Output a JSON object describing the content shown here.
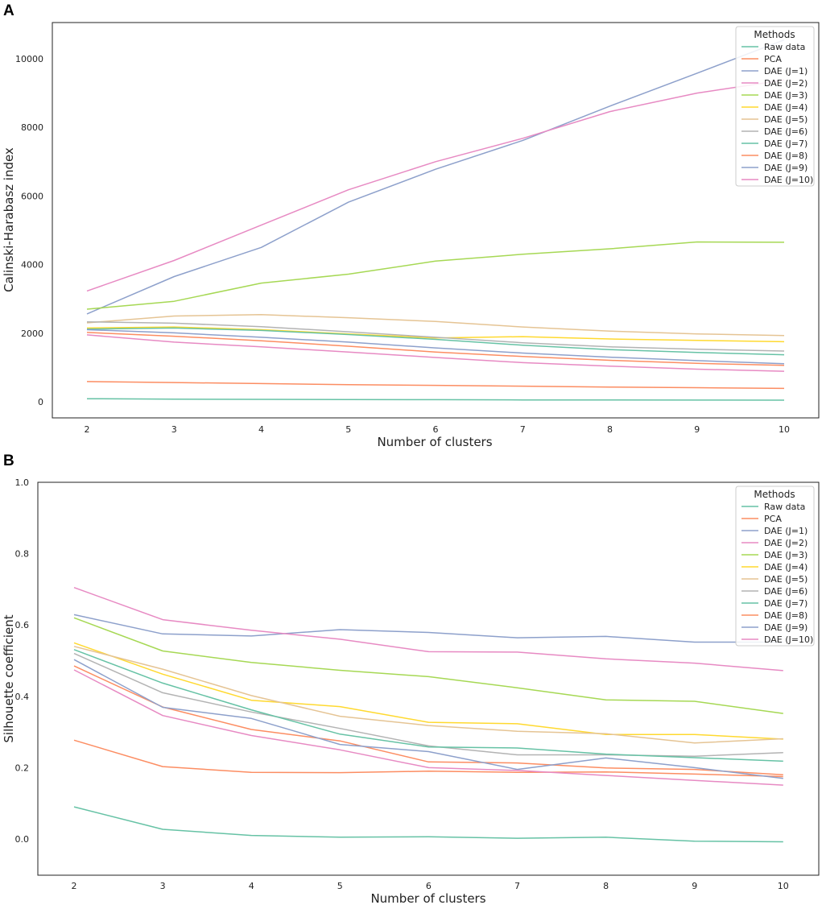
{
  "colors": [
    "#66c2a5",
    "#fc8d62",
    "#8da0cb",
    "#e78ac3",
    "#a6d854",
    "#ffd92f",
    "#e5c494",
    "#b3b3b3",
    "#66c2a5",
    "#fc8d62",
    "#8da0cb",
    "#e78ac3"
  ],
  "chart_data": [
    {
      "panel": "A",
      "type": "line",
      "xlabel": "Number of clusters",
      "ylabel": "Calinski-Harabasz index",
      "x": [
        2,
        3,
        4,
        5,
        6,
        7,
        8,
        9,
        10
      ],
      "ylim": [
        -500,
        11000
      ],
      "yticks": [
        0,
        2000,
        4000,
        6000,
        8000,
        10000
      ],
      "grid": false,
      "legend": {
        "title": "Methods",
        "position": "top-right"
      },
      "series": [
        {
          "name": "Raw data",
          "values": [
            90,
            75,
            70,
            65,
            60,
            55,
            52,
            50,
            48
          ]
        },
        {
          "name": "PCA",
          "values": [
            590,
            560,
            530,
            500,
            480,
            455,
            430,
            410,
            390
          ]
        },
        {
          "name": "DAE (J=1)",
          "values": [
            2560,
            3650,
            4500,
            5820,
            6780,
            7620,
            8620,
            9580,
            10550
          ]
        },
        {
          "name": "DAE (J=2)",
          "values": [
            3230,
            4120,
            5150,
            6180,
            7000,
            7680,
            8460,
            9000,
            9380
          ]
        },
        {
          "name": "DAE (J=3)",
          "values": [
            2700,
            2930,
            3460,
            3720,
            4100,
            4300,
            4460,
            4660,
            4650
          ]
        },
        {
          "name": "DAE (J=4)",
          "values": [
            2150,
            2180,
            2100,
            1980,
            1860,
            1900,
            1830,
            1790,
            1750
          ]
        },
        {
          "name": "DAE (J=5)",
          "values": [
            2300,
            2500,
            2540,
            2450,
            2340,
            2180,
            2060,
            1980,
            1930
          ]
        },
        {
          "name": "DAE (J=6)",
          "values": [
            2330,
            2290,
            2190,
            2040,
            1880,
            1720,
            1600,
            1530,
            1480
          ]
        },
        {
          "name": "DAE (J=7)",
          "values": [
            2120,
            2150,
            2080,
            1960,
            1820,
            1650,
            1520,
            1440,
            1370
          ]
        },
        {
          "name": "DAE (J=8)",
          "values": [
            2020,
            1910,
            1780,
            1620,
            1450,
            1320,
            1210,
            1120,
            1060
          ]
        },
        {
          "name": "DAE (J=9)",
          "values": [
            2100,
            2010,
            1880,
            1740,
            1570,
            1420,
            1300,
            1200,
            1110
          ]
        },
        {
          "name": "DAE (J=10)",
          "values": [
            1950,
            1740,
            1600,
            1450,
            1290,
            1140,
            1040,
            950,
            890
          ]
        }
      ]
    },
    {
      "panel": "B",
      "type": "line",
      "xlabel": "Number of clusters",
      "ylabel": "Silhouette coefficient",
      "x": [
        2,
        3,
        4,
        5,
        6,
        7,
        8,
        9,
        10
      ],
      "ylim": [
        -0.1,
        1.0
      ],
      "yticks": [
        "0.0",
        "0.2",
        "0.4",
        "0.6",
        "0.8",
        "1.0"
      ],
      "grid": false,
      "legend": {
        "title": "Methods",
        "position": "top-right"
      },
      "series": [
        {
          "name": "Raw data",
          "values": [
            0.09,
            0.027,
            0.01,
            0.005,
            0.006,
            0.002,
            0.005,
            -0.006,
            -0.008
          ]
        },
        {
          "name": "PCA",
          "values": [
            0.277,
            0.203,
            0.187,
            0.186,
            0.19,
            0.187,
            0.188,
            0.182,
            0.175
          ]
        },
        {
          "name": "DAE (J=1)",
          "values": [
            0.629,
            0.575,
            0.569,
            0.587,
            0.579,
            0.564,
            0.568,
            0.552,
            0.552
          ]
        },
        {
          "name": "DAE (J=2)",
          "values": [
            0.705,
            0.615,
            0.585,
            0.56,
            0.525,
            0.524,
            0.505,
            0.493,
            0.472
          ]
        },
        {
          "name": "DAE (J=3)",
          "values": [
            0.62,
            0.527,
            0.495,
            0.473,
            0.455,
            0.424,
            0.39,
            0.386,
            0.352
          ]
        },
        {
          "name": "DAE (J=4)",
          "values": [
            0.55,
            0.462,
            0.389,
            0.371,
            0.327,
            0.323,
            0.293,
            0.293,
            0.28
          ]
        },
        {
          "name": "DAE (J=5)",
          "values": [
            0.54,
            0.476,
            0.402,
            0.344,
            0.318,
            0.302,
            0.295,
            0.269,
            0.281
          ]
        },
        {
          "name": "DAE (J=6)",
          "values": [
            0.52,
            0.41,
            0.356,
            0.31,
            0.261,
            0.236,
            0.236,
            0.232,
            0.242
          ]
        },
        {
          "name": "DAE (J=7)",
          "values": [
            0.531,
            0.437,
            0.362,
            0.294,
            0.258,
            0.255,
            0.238,
            0.228,
            0.218
          ]
        },
        {
          "name": "DAE (J=8)",
          "values": [
            0.485,
            0.37,
            0.307,
            0.275,
            0.216,
            0.213,
            0.199,
            0.195,
            0.18
          ]
        },
        {
          "name": "DAE (J=9)",
          "values": [
            0.503,
            0.369,
            0.338,
            0.265,
            0.245,
            0.195,
            0.227,
            0.2,
            0.17
          ]
        },
        {
          "name": "DAE (J=10)",
          "values": [
            0.474,
            0.346,
            0.29,
            0.25,
            0.2,
            0.192,
            0.178,
            0.164,
            0.151
          ]
        }
      ]
    }
  ]
}
